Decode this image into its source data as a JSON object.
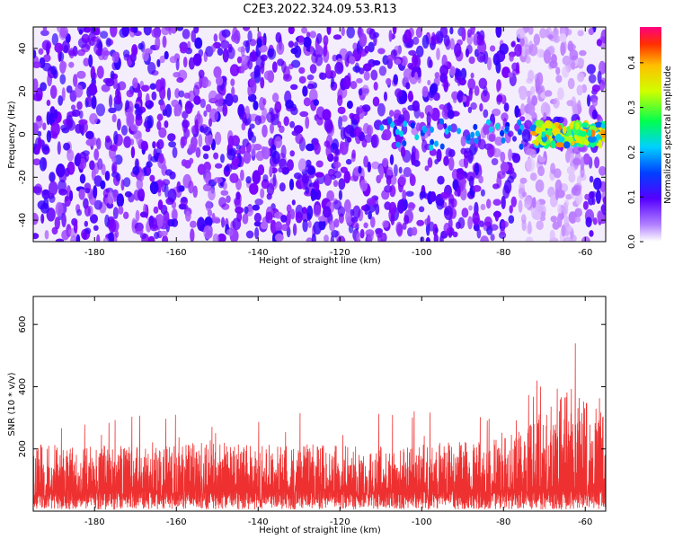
{
  "chart_data": [
    {
      "type": "heatmap",
      "title": "C2E3.2022.324.09.53.R13",
      "xlabel": "Height of straight line (km)",
      "ylabel": "Frequency (Hz)",
      "xlim": [
        -195,
        -55
      ],
      "ylim": [
        -50,
        50
      ],
      "x_ticks": [
        -180,
        -160,
        -140,
        -120,
        -100,
        -80,
        -60
      ],
      "y_ticks": [
        -40,
        -20,
        0,
        20,
        40
      ],
      "colorbar": {
        "label": "Normalized spectral amplitude",
        "range": [
          0,
          0.48
        ],
        "ticks": [
          0.0,
          0.1,
          0.2,
          0.3,
          0.4
        ],
        "colormap": [
          "#ffffff",
          "#7a00ff",
          "#0000ff",
          "#00c8ff",
          "#00ff80",
          "#c8ff00",
          "#ffd000",
          "#ff4000",
          "#ff0080"
        ]
      },
      "background_level_range": [
        0.0,
        0.1
      ],
      "feature": {
        "description_x_range": [
          -73,
          -55
        ],
        "y_center": 0,
        "peak_level": 0.4
      }
    },
    {
      "type": "area",
      "title": "",
      "xlabel": "Height of straight line (km)",
      "ylabel": "SNR (10 * v/v)",
      "xlim": [
        -195,
        -55
      ],
      "ylim": [
        0,
        690
      ],
      "x_ticks": [
        -180,
        -160,
        -140,
        -120,
        -100,
        -80,
        -60
      ],
      "y_ticks": [
        200,
        400,
        600
      ],
      "color": "#ee3030",
      "series": [
        {
          "x": [
            -195,
            -185,
            -175,
            -165,
            -155,
            -145,
            -135,
            -125,
            -115,
            -105,
            -95,
            -85,
            -75,
            -70,
            -65,
            -60,
            -55
          ],
          "values": [
            190,
            180,
            180,
            175,
            190,
            190,
            185,
            185,
            180,
            175,
            195,
            190,
            230,
            300,
            390,
            330,
            280
          ]
        }
      ]
    }
  ]
}
